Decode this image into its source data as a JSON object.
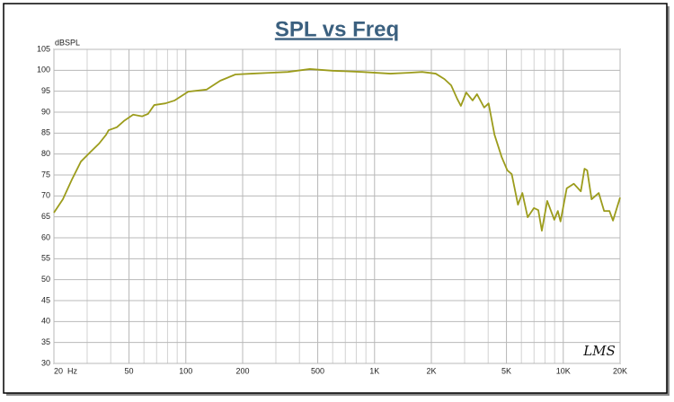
{
  "chart_data": {
    "type": "line",
    "title": "SPL vs Freq",
    "y_label": "dBSPL",
    "watermark": "LMS",
    "xscale": "log",
    "xlim": [
      20,
      20000
    ],
    "ylim": [
      30,
      105
    ],
    "xticks": [
      {
        "value": 20,
        "label": "20  Hz"
      },
      50,
      100,
      200,
      500,
      {
        "value": 1000,
        "label": "1K"
      },
      {
        "value": 2000,
        "label": "2K"
      },
      {
        "value": 5000,
        "label": "5K"
      },
      {
        "value": 10000,
        "label": "10K"
      },
      {
        "value": 20000,
        "label": "20K"
      }
    ],
    "xminorticks": [
      30,
      40,
      60,
      70,
      80,
      90,
      300,
      400,
      600,
      700,
      800,
      900,
      3000,
      4000,
      6000,
      7000,
      8000,
      9000
    ],
    "yticks": [
      30,
      35,
      40,
      45,
      50,
      55,
      60,
      65,
      70,
      75,
      80,
      85,
      90,
      95,
      100,
      105
    ],
    "grid": true,
    "series": [
      {
        "color": "#9c9c1c",
        "x": [
          20,
          22.3,
          24.9,
          27.8,
          31.1,
          34.7,
          37.8,
          39,
          43.1,
          47,
          52.6,
          58.6,
          63.1,
          68,
          78,
          87.3,
          103,
          129,
          152,
          183,
          223,
          278,
          347,
          454,
          597,
          862,
          1212,
          1505,
          1788,
          2109,
          2346,
          2547,
          2740,
          2867,
          3060,
          3308,
          3491,
          3810,
          4021,
          4322,
          4716,
          5054,
          5333,
          5752,
          6072,
          6479,
          6988,
          7373,
          7700,
          8221,
          8965,
          9359,
          9670,
          10430,
          11370,
          12390,
          12960,
          13390,
          14130,
          15420,
          16460,
          17570,
          18340,
          20000
        ],
        "values": [
          66,
          69.2,
          73.9,
          78.2,
          80.4,
          82.5,
          84.6,
          85.7,
          86.4,
          87.9,
          89.4,
          89,
          89.6,
          91.7,
          92.1,
          92.8,
          94.9,
          95.4,
          97.5,
          99,
          99.2,
          99.4,
          99.6,
          100.3,
          99.9,
          99.6,
          99.2,
          99.4,
          99.6,
          99.2,
          97.9,
          96.4,
          93.2,
          91.5,
          94.7,
          92.8,
          94.3,
          91.1,
          92.1,
          84.6,
          79.3,
          76.1,
          75.2,
          67.9,
          70.7,
          64.9,
          67.1,
          66.6,
          61.7,
          68.8,
          64.3,
          66.4,
          63.9,
          71.8,
          72.9,
          71.1,
          76.5,
          76.1,
          69.2,
          70.7,
          66.4,
          66.4,
          64.1,
          69.6
        ]
      }
    ]
  }
}
